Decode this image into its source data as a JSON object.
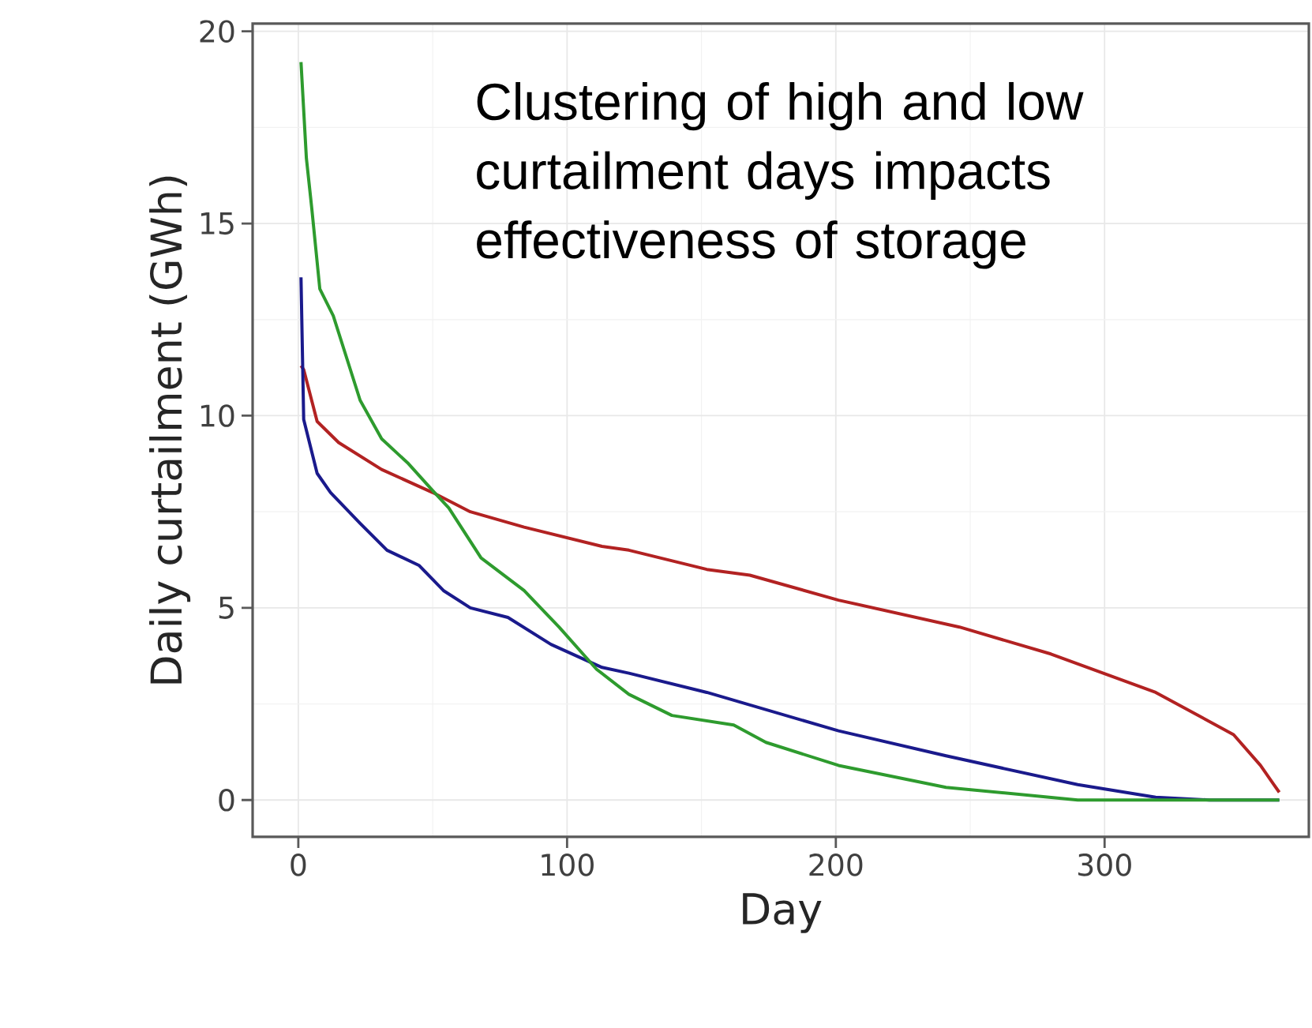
{
  "chart_data": {
    "type": "line",
    "xlabel": "Day",
    "ylabel": "Daily curtailment (GWh)",
    "annotations": [
      "Clustering of high and low curtailment days impacts effectiveness of storage"
    ],
    "xlim": [
      -17,
      376
    ],
    "ylim": [
      -0.96,
      20.2
    ],
    "xticks": [
      0,
      100,
      200,
      300
    ],
    "yticks": [
      0,
      5,
      10,
      15,
      20
    ],
    "grid": true,
    "line_style": "solid",
    "marker": "none",
    "series": [
      {
        "color": "#b22222",
        "x": [
          1,
          2,
          7,
          15,
          31,
          50,
          64,
          84,
          113,
          123,
          152,
          168,
          201,
          246,
          280,
          319,
          348,
          358,
          363,
          365
        ],
        "values": [
          11.3,
          11.2,
          9.85,
          9.3,
          8.6,
          8.0,
          7.5,
          7.1,
          6.6,
          6.5,
          6.0,
          5.85,
          5.2,
          4.5,
          3.8,
          2.8,
          1.7,
          0.9,
          0.4,
          0.2
        ]
      },
      {
        "color": "#1a1a8c",
        "x": [
          1,
          2,
          7,
          12,
          23,
          33,
          45,
          54,
          64,
          78,
          94,
          113,
          123,
          152,
          201,
          241,
          290,
          319,
          339,
          365
        ],
        "values": [
          13.6,
          9.9,
          8.5,
          8.0,
          7.2,
          6.5,
          6.1,
          5.45,
          5.0,
          4.75,
          4.05,
          3.45,
          3.3,
          2.8,
          1.8,
          1.15,
          0.4,
          0.07,
          0,
          0
        ]
      },
      {
        "color": "#2e9b2e",
        "x": [
          1,
          3,
          5,
          8,
          13,
          18,
          23,
          31,
          41,
          50,
          56,
          68,
          84,
          97,
          111,
          123,
          139,
          162,
          174,
          201,
          241,
          290,
          365
        ],
        "values": [
          19.2,
          16.7,
          15.4,
          13.3,
          12.6,
          11.5,
          10.4,
          9.4,
          8.75,
          8.05,
          7.6,
          6.3,
          5.45,
          4.5,
          3.4,
          2.75,
          2.2,
          1.95,
          1.5,
          0.9,
          0.33,
          0,
          0
        ]
      }
    ]
  }
}
